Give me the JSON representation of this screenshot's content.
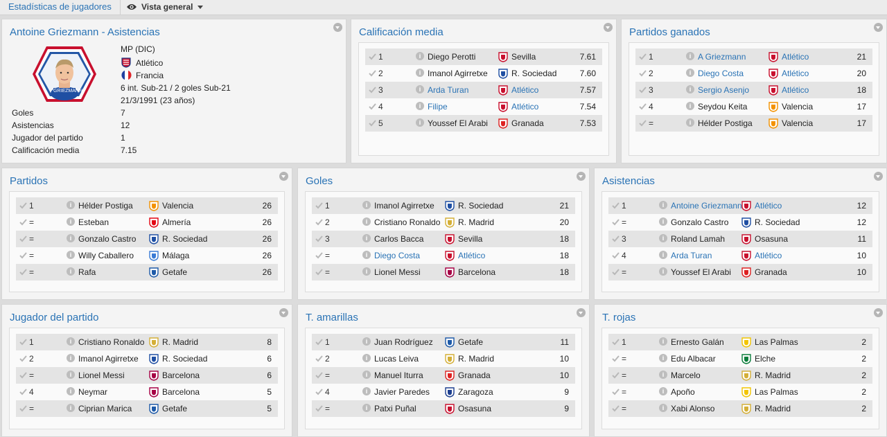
{
  "topbar": {
    "title": "Estadísticas de jugadores",
    "view": "Vista general"
  },
  "profile": {
    "title": "Antoine Griezmann - Asistencias",
    "card_name": "GRIEZMANN",
    "position": "MP (DIC)",
    "club": "Atlético",
    "nation": "Francia",
    "intl": "6 int. Sub-21 / 2 goles Sub-21",
    "dob": "21/3/1991 (23 años)",
    "stats": [
      {
        "label": "Goles",
        "value": "7"
      },
      {
        "label": "Asistencias",
        "value": "12"
      },
      {
        "label": "Jugador del partido",
        "value": "1"
      },
      {
        "label": "Calificación media",
        "value": "7.15"
      }
    ]
  },
  "panels": [
    {
      "title": "Calificación media",
      "rows": [
        {
          "rank": "1",
          "player": "Diego Perotti",
          "club": "Sevilla",
          "value": "7.61",
          "link": false,
          "crest": "#c8102e"
        },
        {
          "rank": "2",
          "player": "Imanol Agirretxe",
          "club": "R. Sociedad",
          "value": "7.60",
          "link": false,
          "crest": "#1f4fa3"
        },
        {
          "rank": "3",
          "player": "Arda Turan",
          "club": "Atlético",
          "value": "7.57",
          "link": true,
          "crest": "#c8102e"
        },
        {
          "rank": "4",
          "player": "Filipe",
          "club": "Atlético",
          "value": "7.54",
          "link": true,
          "crest": "#c8102e"
        },
        {
          "rank": "5",
          "player": "Youssef El Arabi",
          "club": "Granada",
          "value": "7.53",
          "link": false,
          "crest": "#d22"
        }
      ]
    },
    {
      "title": "Partidos ganados",
      "rows": [
        {
          "rank": "1",
          "player": "A Griezmann",
          "club": "Atlético",
          "value": "21",
          "link": true,
          "crest": "#c8102e"
        },
        {
          "rank": "2",
          "player": "Diego Costa",
          "club": "Atlético",
          "value": "20",
          "link": true,
          "crest": "#c8102e"
        },
        {
          "rank": "3",
          "player": "Sergio Asenjo",
          "club": "Atlético",
          "value": "18",
          "link": true,
          "crest": "#c8102e"
        },
        {
          "rank": "4",
          "player": "Seydou Keita",
          "club": "Valencia",
          "value": "17",
          "link": false,
          "crest": "#f39200"
        },
        {
          "rank": "=",
          "player": "Hélder Postiga",
          "club": "Valencia",
          "value": "17",
          "link": false,
          "crest": "#f39200"
        }
      ]
    },
    {
      "title": "Partidos",
      "rows": [
        {
          "rank": "1",
          "player": "Hélder Postiga",
          "club": "Valencia",
          "value": "26",
          "link": false,
          "crest": "#f39200"
        },
        {
          "rank": "=",
          "player": "Esteban",
          "club": "Almería",
          "value": "26",
          "link": false,
          "crest": "#e30613"
        },
        {
          "rank": "=",
          "player": "Gonzalo Castro",
          "club": "R. Sociedad",
          "value": "26",
          "link": false,
          "crest": "#1f4fa3"
        },
        {
          "rank": "=",
          "player": "Willy Caballero",
          "club": "Málaga",
          "value": "26",
          "link": false,
          "crest": "#3a7bd5"
        },
        {
          "rank": "=",
          "player": "Rafa",
          "club": "Getafe",
          "value": "26",
          "link": false,
          "crest": "#1e5aa8"
        }
      ]
    },
    {
      "title": "Goles",
      "rows": [
        {
          "rank": "1",
          "player": "Imanol Agirretxe",
          "club": "R. Sociedad",
          "value": "21",
          "link": false,
          "crest": "#1f4fa3"
        },
        {
          "rank": "2",
          "player": "Cristiano Ronaldo",
          "club": "R. Madrid",
          "value": "20",
          "link": false,
          "crest": "#d4af37"
        },
        {
          "rank": "3",
          "player": "Carlos Bacca",
          "club": "Sevilla",
          "value": "18",
          "link": false,
          "crest": "#c8102e"
        },
        {
          "rank": "=",
          "player": "Diego Costa",
          "club": "Atlético",
          "value": "18",
          "link": true,
          "crest": "#c8102e"
        },
        {
          "rank": "=",
          "player": "Lionel Messi",
          "club": "Barcelona",
          "value": "18",
          "link": false,
          "crest": "#a50044"
        }
      ]
    },
    {
      "title": "Asistencias",
      "rows": [
        {
          "rank": "1",
          "player": "Antoine Griezmann",
          "club": "Atlético",
          "value": "12",
          "link": true,
          "crest": "#c8102e"
        },
        {
          "rank": "=",
          "player": "Gonzalo Castro",
          "club": "R. Sociedad",
          "value": "12",
          "link": false,
          "crest": "#1f4fa3"
        },
        {
          "rank": "3",
          "player": "Roland Lamah",
          "club": "Osasuna",
          "value": "11",
          "link": false,
          "crest": "#c8102e"
        },
        {
          "rank": "4",
          "player": "Arda Turan",
          "club": "Atlético",
          "value": "10",
          "link": true,
          "crest": "#c8102e"
        },
        {
          "rank": "=",
          "player": "Youssef El Arabi",
          "club": "Granada",
          "value": "10",
          "link": false,
          "crest": "#d22"
        }
      ]
    },
    {
      "title": "Jugador del partido",
      "rows": [
        {
          "rank": "1",
          "player": "Cristiano Ronaldo",
          "club": "R. Madrid",
          "value": "8",
          "link": false,
          "crest": "#d4af37"
        },
        {
          "rank": "2",
          "player": "Imanol Agirretxe",
          "club": "R. Sociedad",
          "value": "6",
          "link": false,
          "crest": "#1f4fa3"
        },
        {
          "rank": "=",
          "player": "Lionel Messi",
          "club": "Barcelona",
          "value": "6",
          "link": false,
          "crest": "#a50044"
        },
        {
          "rank": "4",
          "player": "Neymar",
          "club": "Barcelona",
          "value": "5",
          "link": false,
          "crest": "#a50044"
        },
        {
          "rank": "=",
          "player": "Ciprian Marica",
          "club": "Getafe",
          "value": "5",
          "link": false,
          "crest": "#1e5aa8"
        }
      ]
    },
    {
      "title": "T. amarillas",
      "rows": [
        {
          "rank": "1",
          "player": "Juan Rodríguez",
          "club": "Getafe",
          "value": "11",
          "link": false,
          "crest": "#1e5aa8"
        },
        {
          "rank": "2",
          "player": "Lucas Leiva",
          "club": "R. Madrid",
          "value": "10",
          "link": false,
          "crest": "#d4af37"
        },
        {
          "rank": "=",
          "player": "Manuel Iturra",
          "club": "Granada",
          "value": "10",
          "link": false,
          "crest": "#d22"
        },
        {
          "rank": "4",
          "player": "Javier Paredes",
          "club": "Zaragoza",
          "value": "9",
          "link": false,
          "crest": "#1d3f8f"
        },
        {
          "rank": "=",
          "player": "Patxi Puñal",
          "club": "Osasuna",
          "value": "9",
          "link": false,
          "crest": "#c8102e"
        }
      ]
    },
    {
      "title": "T. rojas",
      "rows": [
        {
          "rank": "1",
          "player": "Ernesto Galán",
          "club": "Las Palmas",
          "value": "2",
          "link": false,
          "crest": "#f2c500"
        },
        {
          "rank": "=",
          "player": "Edu Albacar",
          "club": "Elche",
          "value": "2",
          "link": false,
          "crest": "#0a7d3b"
        },
        {
          "rank": "=",
          "player": "Marcelo",
          "club": "R. Madrid",
          "value": "2",
          "link": false,
          "crest": "#d4af37"
        },
        {
          "rank": "=",
          "player": "Apoño",
          "club": "Las Palmas",
          "value": "2",
          "link": false,
          "crest": "#f2c500"
        },
        {
          "rank": "=",
          "player": "Xabi Alonso",
          "club": "R. Madrid",
          "value": "2",
          "link": false,
          "crest": "#d4af37"
        }
      ]
    }
  ]
}
